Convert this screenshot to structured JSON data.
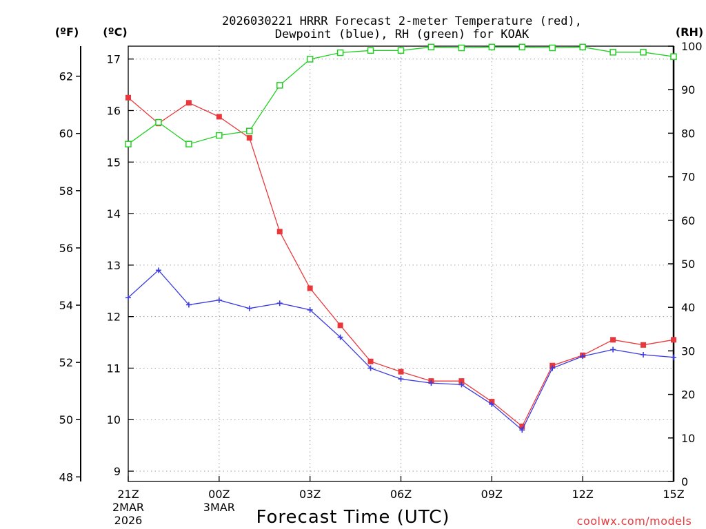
{
  "chart_data": {
    "type": "line",
    "title": "2026030221 HRRR Forecast 2-meter Temperature (red),",
    "subtitle": "Dewpoint (blue), RH (green) for KOAK",
    "xlabel": "Forecast Time (UTC)",
    "left_unit_f": "(ºF)",
    "left_unit_c": "(ºC)",
    "right_unit": "(RH)",
    "x_hours": [
      0,
      1,
      2,
      3,
      4,
      5,
      6,
      7,
      8,
      9,
      10,
      11,
      12,
      13,
      14,
      15,
      16,
      17,
      18
    ],
    "x_ticks": [
      {
        "hour": 0,
        "label": "21Z",
        "sub1": "2MAR",
        "sub2": "2026"
      },
      {
        "hour": 3,
        "label": "00Z",
        "sub1": "3MAR",
        "sub2": ""
      },
      {
        "hour": 6,
        "label": "03Z",
        "sub1": "",
        "sub2": ""
      },
      {
        "hour": 9,
        "label": "06Z",
        "sub1": "",
        "sub2": ""
      },
      {
        "hour": 12,
        "label": "09Z",
        "sub1": "",
        "sub2": ""
      },
      {
        "hour": 15,
        "label": "12Z",
        "sub1": "",
        "sub2": ""
      },
      {
        "hour": 18,
        "label": "15Z",
        "sub1": "",
        "sub2": ""
      }
    ],
    "celsius_range": [
      8.8,
      17.25
    ],
    "celsius_ticks": [
      9,
      10,
      11,
      12,
      13,
      14,
      15,
      16,
      17
    ],
    "fahrenheit_ticks": [
      48,
      50,
      52,
      54,
      56,
      58,
      60,
      62
    ],
    "rh_range": [
      0,
      100
    ],
    "rh_ticks": [
      0,
      10,
      20,
      30,
      40,
      50,
      60,
      70,
      80,
      90,
      100
    ],
    "series": [
      {
        "name": "Temperature",
        "color": "#e8383b",
        "marker": "filled-square",
        "values": [
          16.25,
          15.75,
          16.15,
          15.88,
          15.47,
          13.65,
          12.55,
          11.83,
          11.13,
          10.93,
          10.75,
          10.75,
          10.35,
          9.87,
          11.05,
          11.25,
          11.55,
          11.45,
          11.55
        ]
      },
      {
        "name": "Dewpoint",
        "color": "#3a3ae0",
        "marker": "plus",
        "values": [
          12.37,
          12.9,
          12.23,
          12.32,
          12.16,
          12.26,
          12.13,
          11.6,
          11.0,
          10.79,
          10.71,
          10.68,
          10.3,
          9.8,
          11.0,
          11.23,
          11.36,
          11.26,
          11.21
        ]
      },
      {
        "name": "RH",
        "color": "#22d022",
        "marker": "open-square",
        "values": [
          77.5,
          82.5,
          77.5,
          79.5,
          80.5,
          91.0,
          97.0,
          98.5,
          99.0,
          99.0,
          99.8,
          99.6,
          99.8,
          99.8,
          99.6,
          99.8,
          98.6,
          98.6,
          97.6
        ]
      }
    ]
  },
  "credit": "coolwx.com/models"
}
